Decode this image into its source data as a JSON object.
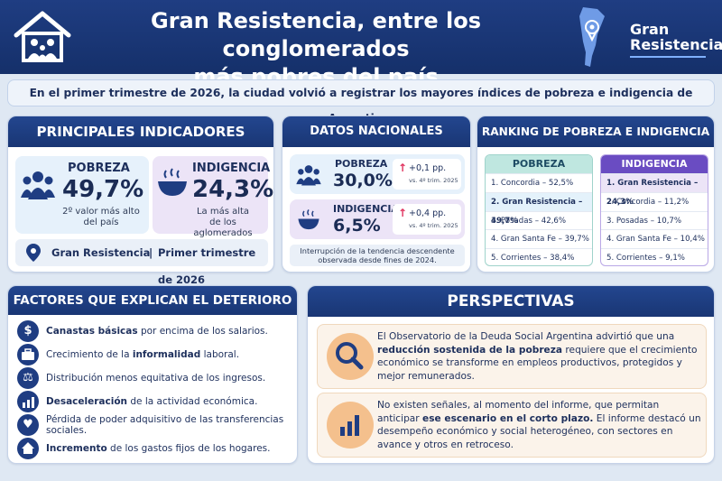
{
  "header": {
    "title_line1": "Gran Resistencia, entre los conglomerados",
    "title_line2": "más pobres del país",
    "logo_line1": "Gran",
    "logo_line2": "Resistencia"
  },
  "subtitle": "En el primer trimestre de 2026, la ciudad volvió a registrar los mayores índices de pobreza e indigencia de Argentina.",
  "principales": {
    "title": "PRINCIPALES INDICADORES",
    "pobreza_label": "POBREZA",
    "pobreza_value": "49,7%",
    "pobreza_note_1": "2º valor más alto",
    "pobreza_note_2": "del país",
    "indigencia_label": "INDIGENCIA",
    "indigencia_value": "24,3%",
    "indigencia_note_1": "La más alta",
    "indigencia_note_2": "de los aglomerados",
    "location": "Gran Resistencia",
    "period": "Primer trimestre de 2026"
  },
  "nacionales": {
    "title": "DATOS NACIONALES",
    "pobreza_label": "POBREZA",
    "pobreza_value": "30,0%",
    "pobreza_delta": "+0,1 pp.",
    "pobreza_delta_sub": "vs. 4º trim. 2025",
    "indigencia_label": "INDIGENCIA",
    "indigencia_value": "6,5%",
    "indigencia_delta": "+0,4 pp.",
    "indigencia_delta_sub": "vs. 4º trim. 2025",
    "note_1": "Interrupción de la tendencia descendente",
    "note_2": "observada desde fines de 2024."
  },
  "ranking": {
    "title": "RANKING DE POBREZA E INDIGENCIA",
    "pobreza_head": "POBREZA",
    "indigencia_head": "INDIGENCIA",
    "pobreza": [
      "1. Concordia – 52,5%",
      "2. Gran Resistencia – 49,7%",
      "3. Posadas – 42,6%",
      "4. Gran Santa Fe – 39,7%",
      "5. Corrientes – 38,4%"
    ],
    "indigencia": [
      "1. Gran Resistencia – 24,3%",
      "2. Concordia – 11,2%",
      "3. Posadas – 10,7%",
      "4. Gran Santa Fe – 10,4%",
      "5. Corrientes – 9,1%"
    ]
  },
  "factores": {
    "title": "FACTORES QUE EXPLICAN EL DETERIORO",
    "items": [
      {
        "bold": "Canastas básicas",
        "rest": " por encima de los salarios.",
        "icon": "$"
      },
      {
        "pre": "Crecimiento de la ",
        "bold": "informalidad",
        "rest": " laboral."
      },
      {
        "rest": "Distribución menos equitativa de los ingresos."
      },
      {
        "bold": "Desaceleración",
        "rest": " de la actividad económica."
      },
      {
        "rest": "Pérdida de poder adquisitivo de las transferencias sociales."
      },
      {
        "bold": "Incremento",
        "rest": " de los gastos fijos de los hogares."
      }
    ]
  },
  "perspectivas": {
    "title": "PERSPECTIVAS",
    "p1_a": "El Observatorio de la Deuda Social Argentina advirtió que una ",
    "p1_b": "reducción sostenida de la pobreza",
    "p1_c": " requiere que el crecimiento económico se transforme en empleos productivos, protegidos y mejor remunerados.",
    "p2_a": "No existen señales, al momento del informe, que permitan anticipar ",
    "p2_b": "ese escenario en el corto plazo.",
    "p2_c": " El informe destacó un desempeño económico y social heterogéneo, con sectores en avance y otros en retroceso."
  },
  "colors": {
    "navy": "#1f3d82",
    "purple": "#6a4cc2",
    "teal": "#bfe7e0",
    "accent_up": "#e0335f"
  }
}
